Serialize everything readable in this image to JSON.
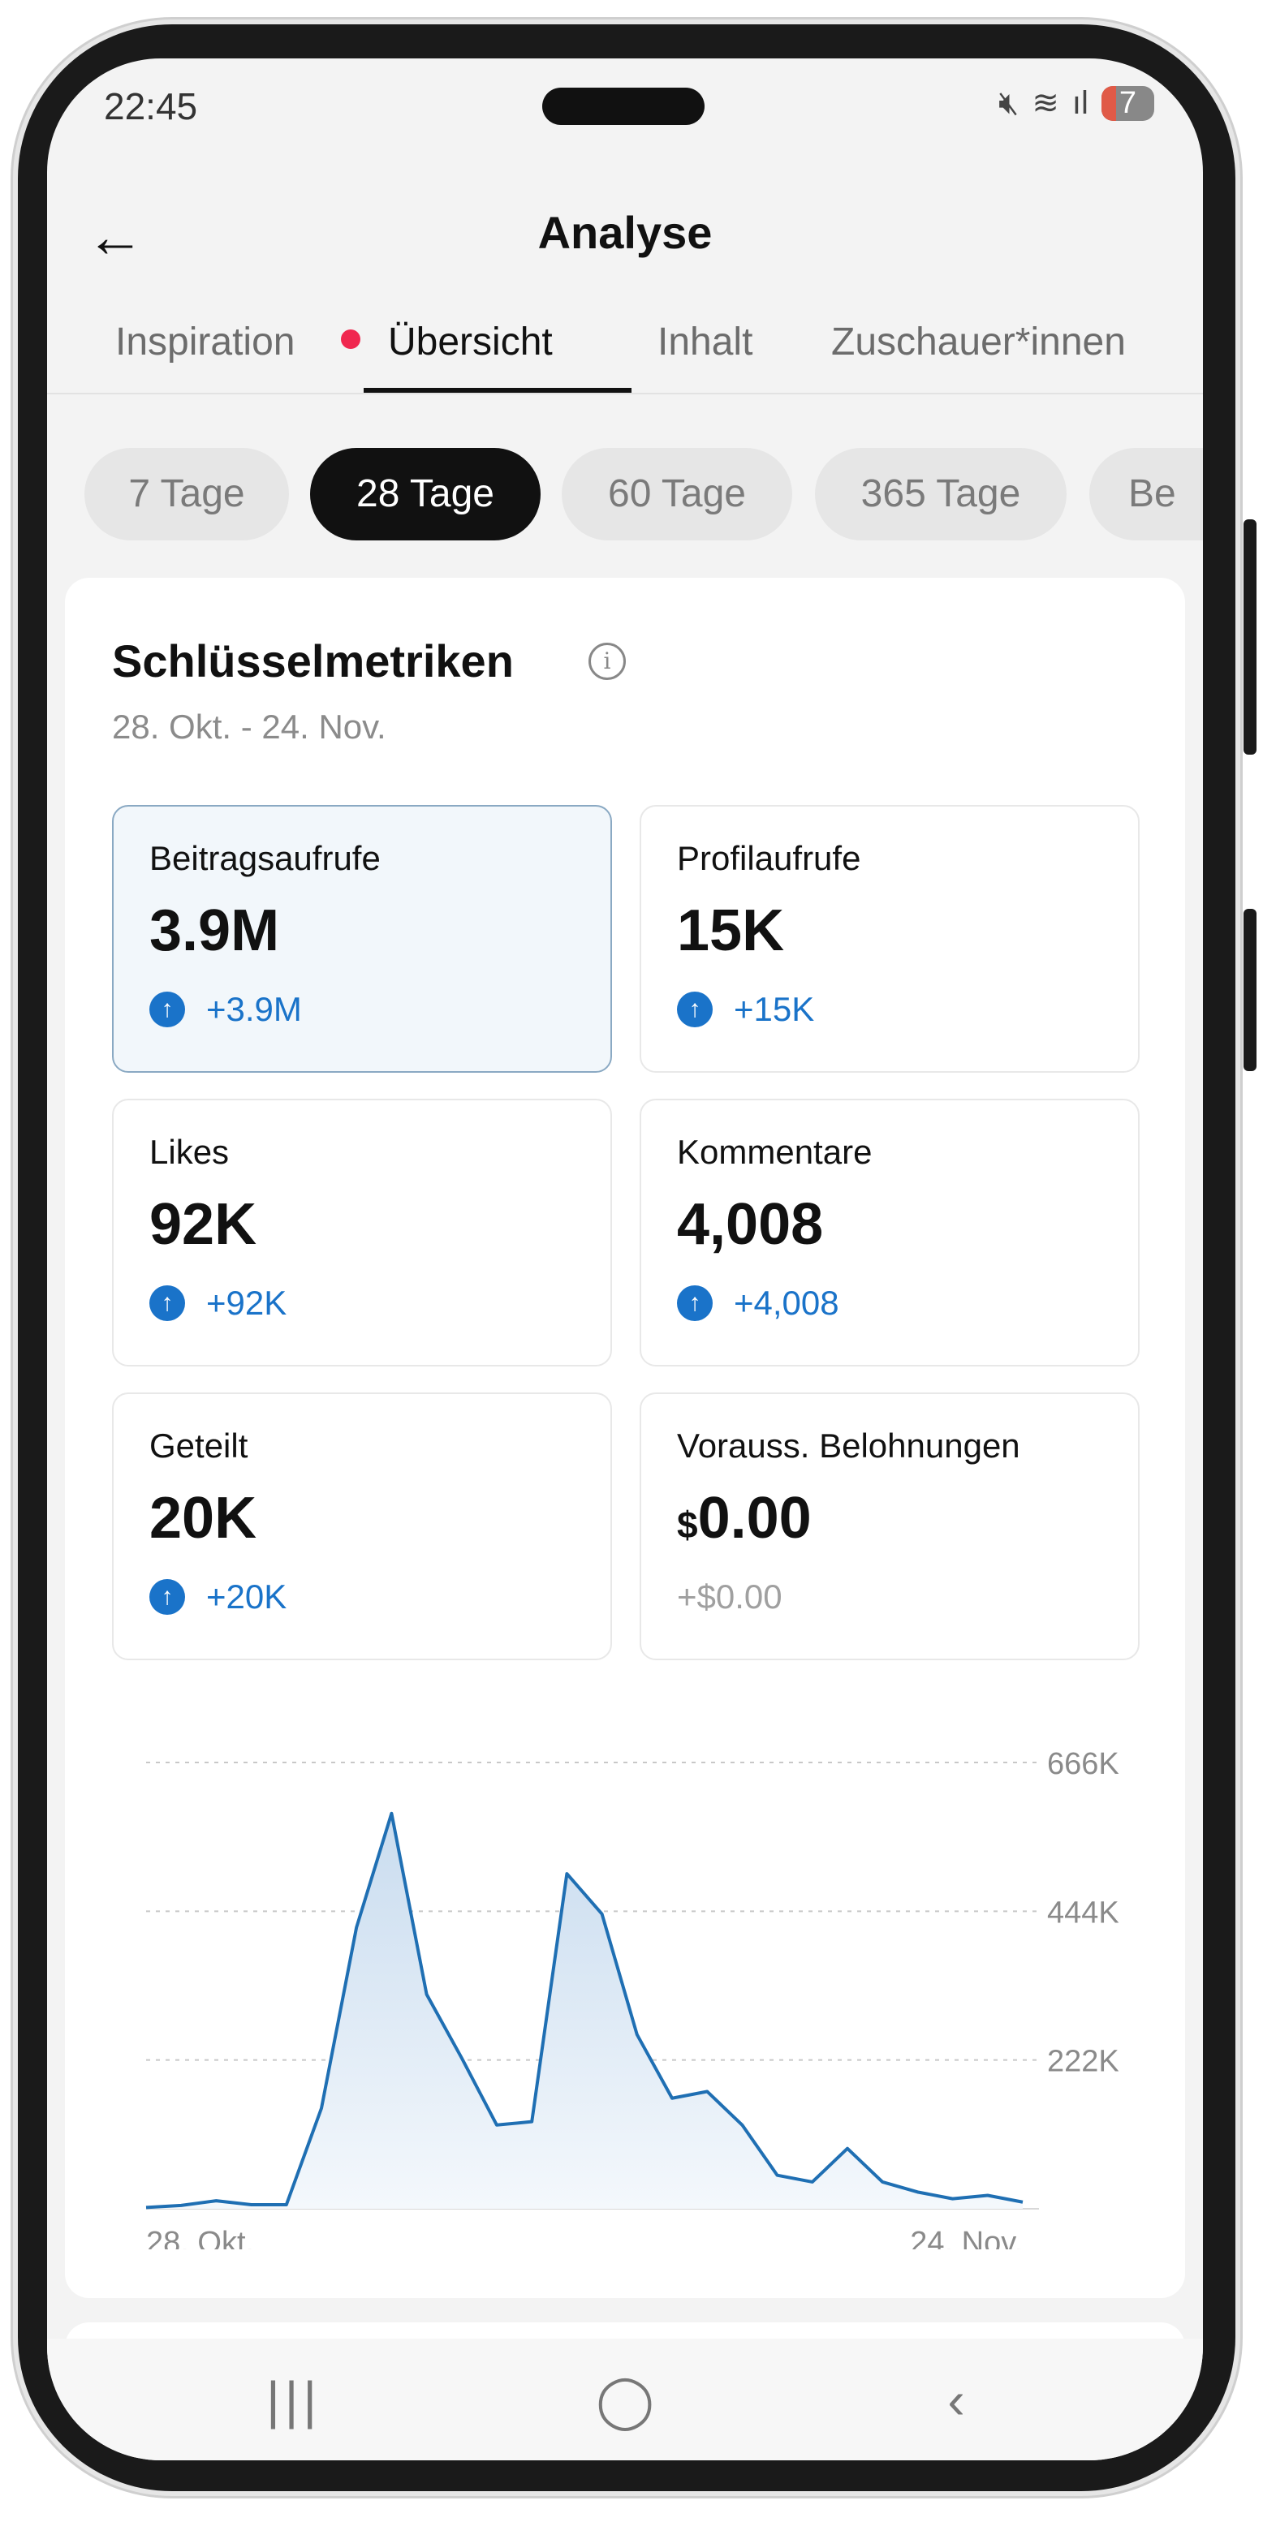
{
  "status_bar": {
    "time": "22:45",
    "battery": "7"
  },
  "header": {
    "title": "Analyse"
  },
  "tabs": [
    {
      "label": "Inspiration"
    },
    {
      "label": "Übersicht"
    },
    {
      "label": "Inhalt"
    },
    {
      "label": "Zuschauer*innen"
    }
  ],
  "ranges": [
    {
      "label": "7 Tage"
    },
    {
      "label": "28 Tage"
    },
    {
      "label": "60 Tage"
    },
    {
      "label": "365 Tage"
    },
    {
      "label": "Be"
    }
  ],
  "metrics_section": {
    "title": "Schlüsselmetriken",
    "date_range": "28. Okt. - 24. Nov.",
    "metrics": [
      {
        "label": "Beitragsaufrufe",
        "value": "3.9M",
        "delta": "+3.9M"
      },
      {
        "label": "Profilaufrufe",
        "value": "15K",
        "delta": "+15K"
      },
      {
        "label": "Likes",
        "value": "92K",
        "delta": "+92K"
      },
      {
        "label": "Kommentare",
        "value": "4,008",
        "delta": "+4,008"
      },
      {
        "label": "Geteilt",
        "value": "20K",
        "delta": "+20K"
      },
      {
        "label": "Vorauss. Belohnungen",
        "value_currency": "$",
        "value": "0.00",
        "delta": "+$0.00"
      }
    ]
  },
  "chart_data": {
    "type": "area",
    "x_tick_labels": [
      "28. Okt.",
      "24. Nov."
    ],
    "y_tick_labels": [
      "666K",
      "444K",
      "222K"
    ],
    "ylim": [
      0,
      666000
    ],
    "grid": true,
    "values": [
      2000,
      5000,
      12000,
      6000,
      6000,
      150000,
      420000,
      590000,
      320000,
      225000,
      125000,
      130000,
      500000,
      440000,
      260000,
      165000,
      175000,
      125000,
      50000,
      40000,
      90000,
      40000,
      25000,
      15000,
      20000,
      10000
    ],
    "colors": {
      "line": "#1f6fb3",
      "fill_top": "#c9dcef",
      "fill_bottom": "#f4f8fc",
      "grid": "#c8c8c8"
    }
  },
  "colors": {
    "accent": "#1a73c9",
    "tab_dot": "#f0274f"
  }
}
